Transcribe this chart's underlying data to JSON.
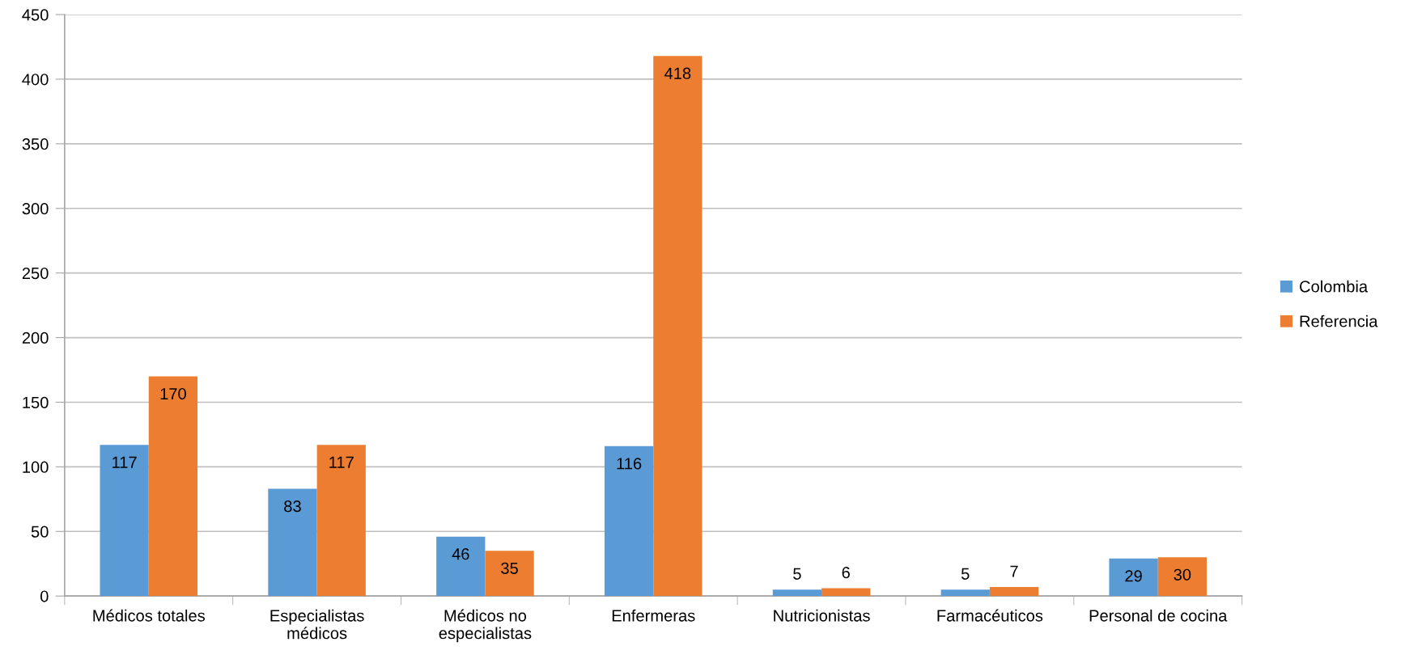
{
  "chart_data": {
    "type": "bar",
    "categories": [
      "Médicos totales",
      "Especialistas\nmédicos",
      "Médicos no\nespecialistas",
      "Enfermeras",
      "Nutricionistas",
      "Farmacéuticos",
      "Personal de cocina"
    ],
    "series": [
      {
        "name": "Colombia",
        "color": "#5b9bd5",
        "values": [
          117,
          83,
          46,
          116,
          5,
          5,
          29
        ]
      },
      {
        "name": "Referencia",
        "color": "#ed7d31",
        "values": [
          170,
          117,
          35,
          418,
          6,
          7,
          30
        ]
      }
    ],
    "ylim": [
      0,
      450
    ],
    "yticks": [
      0,
      50,
      100,
      150,
      200,
      250,
      300,
      350,
      400,
      450
    ],
    "grid": "y",
    "legend": "right",
    "data_labels": true
  }
}
